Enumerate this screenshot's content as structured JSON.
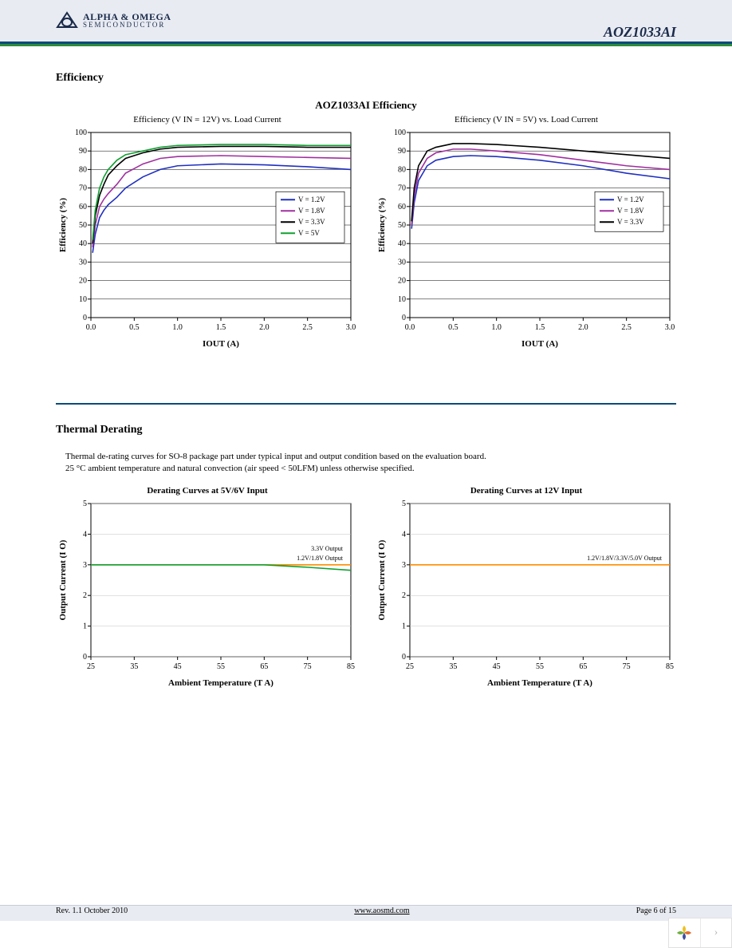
{
  "header": {
    "company_line1": "ALPHA & OMEGA",
    "company_line2": "SEMICONDUCTOR",
    "part_number": "AOZ1033AI",
    "rule_blue": "#0a4b7a",
    "rule_green": "#2e8b3e",
    "band_bg": "#e8ebf2"
  },
  "section_efficiency": {
    "heading": "Efficiency",
    "main_title": "AOZ1033AI Efficiency",
    "left_chart": {
      "type": "line",
      "title": "Efficiency (V      IN  = 12V) vs. Load Current",
      "xlabel": "IOUT  (A)",
      "ylabel": "Efficiency (%)",
      "xlim": [
        0,
        3.0
      ],
      "xtick_step": 0.5,
      "ylim": [
        0,
        100
      ],
      "ytick_step": 10,
      "grid_color": "#000000",
      "grid_width": 0.5,
      "background_color": "#ffffff",
      "line_width": 1.6,
      "legend_pos": "right-mid",
      "series": [
        {
          "label": "V   = 1.2V",
          "color": "#2030c0",
          "x": [
            0.02,
            0.05,
            0.1,
            0.15,
            0.2,
            0.3,
            0.4,
            0.6,
            0.8,
            1.0,
            1.5,
            2.0,
            2.5,
            3.0
          ],
          "y": [
            35,
            45,
            54,
            58,
            61,
            65,
            70,
            76,
            80,
            82,
            83,
            82.5,
            81.5,
            80
          ]
        },
        {
          "label": "V   = 1.8V",
          "color": "#a030a0",
          "x": [
            0.02,
            0.05,
            0.1,
            0.15,
            0.2,
            0.3,
            0.4,
            0.6,
            0.8,
            1.0,
            1.5,
            2.0,
            2.5,
            3.0
          ],
          "y": [
            38,
            50,
            60,
            64,
            67,
            72,
            78,
            83,
            86,
            87,
            87.5,
            87,
            86.5,
            86
          ]
        },
        {
          "label": "V   = 3.3V",
          "color": "#000000",
          "x": [
            0.02,
            0.05,
            0.1,
            0.15,
            0.2,
            0.3,
            0.4,
            0.6,
            0.8,
            1.0,
            1.5,
            2.0,
            2.5,
            3.0
          ],
          "y": [
            40,
            55,
            66,
            72,
            77,
            82,
            86,
            89,
            91,
            92,
            92.5,
            92.5,
            92,
            92
          ]
        },
        {
          "label": "V   = 5V",
          "color": "#10a030",
          "x": [
            0.02,
            0.05,
            0.1,
            0.15,
            0.2,
            0.3,
            0.4,
            0.6,
            0.8,
            1.0,
            1.5,
            2.0,
            2.5,
            3.0
          ],
          "y": [
            42,
            58,
            70,
            76,
            80,
            85,
            88,
            90,
            92,
            93,
            93.5,
            93.5,
            93,
            93
          ]
        }
      ]
    },
    "right_chart": {
      "type": "line",
      "title": "Efficiency (V      IN  = 5V) vs. Load Current",
      "xlabel": "IOUT  (A)",
      "ylabel": "Efficiency (%)",
      "xlim": [
        0,
        3.0
      ],
      "xtick_step": 0.5,
      "ylim": [
        0,
        100
      ],
      "ytick_step": 10,
      "grid_color": "#000000",
      "grid_width": 0.5,
      "background_color": "#ffffff",
      "line_width": 1.6,
      "legend_pos": "right-mid",
      "series": [
        {
          "label": "V   = 1.2V",
          "color": "#2030c0",
          "x": [
            0.02,
            0.05,
            0.1,
            0.2,
            0.3,
            0.5,
            0.7,
            1.0,
            1.5,
            2.0,
            2.5,
            3.0
          ],
          "y": [
            48,
            62,
            74,
            82,
            85,
            87,
            87.5,
            87,
            85,
            82,
            78,
            75
          ]
        },
        {
          "label": "V   = 1.8V",
          "color": "#a030a0",
          "x": [
            0.02,
            0.05,
            0.1,
            0.2,
            0.3,
            0.5,
            0.7,
            1.0,
            1.5,
            2.0,
            2.5,
            3.0
          ],
          "y": [
            50,
            66,
            78,
            86,
            89,
            91,
            91,
            90,
            88,
            85,
            82,
            80
          ]
        },
        {
          "label": "V   = 3.3V",
          "color": "#000000",
          "x": [
            0.02,
            0.05,
            0.1,
            0.2,
            0.3,
            0.5,
            0.7,
            1.0,
            1.5,
            2.0,
            2.5,
            3.0
          ],
          "y": [
            52,
            70,
            82,
            90,
            92,
            94,
            94,
            93.5,
            92,
            90,
            88,
            86
          ]
        }
      ]
    }
  },
  "section_thermal": {
    "heading": "Thermal Derating",
    "note_line1": "Thermal de-rating curves for SO-8 package part under typical input and output condition based on the evaluation board.",
    "note_line2": "25 °C ambient temperature and natural convection (air speed < 50LFM) unless otherwise specified.",
    "left_chart": {
      "type": "line",
      "title": "Derating Curves at 5V/6V Input",
      "xlabel": "Ambient Temperature (T        A)",
      "ylabel": "Output Current (I        O)",
      "xlim": [
        25,
        85
      ],
      "xtick_step": 10,
      "ylim": [
        0,
        5
      ],
      "ytick_step": 1,
      "grid_color": "#c0c0c0",
      "grid_width": 0.5,
      "background_color": "#ffffff",
      "line_width": 1.6,
      "legend_labels": [
        "1.2V/1.8V Output",
        "3.3V Output"
      ],
      "series": [
        {
          "color": "#ff8c00",
          "x": [
            25,
            35,
            45,
            55,
            65,
            75,
            85
          ],
          "y": [
            3,
            3,
            3,
            3,
            3,
            3,
            3
          ]
        },
        {
          "color": "#10a030",
          "x": [
            25,
            35,
            45,
            55,
            65,
            75,
            85
          ],
          "y": [
            3,
            3,
            3,
            3,
            3,
            2.92,
            2.82
          ]
        }
      ]
    },
    "right_chart": {
      "type": "line",
      "title": "Derating Curves at 12V Input",
      "xlabel": "Ambient Temperature (T        A)",
      "ylabel": "Output Current (I        O)",
      "xlim": [
        25,
        85
      ],
      "xtick_step": 10,
      "ylim": [
        0,
        5
      ],
      "ytick_step": 1,
      "grid_color": "#c0c0c0",
      "grid_width": 0.5,
      "background_color": "#ffffff",
      "line_width": 1.6,
      "legend_labels": [
        "1.2V/1.8V/3.3V/5.0V Output"
      ],
      "series": [
        {
          "color": "#ff8c00",
          "x": [
            25,
            35,
            45,
            55,
            65,
            75,
            85
          ],
          "y": [
            3,
            3,
            3,
            3,
            3,
            3,
            3
          ]
        }
      ]
    }
  },
  "footer": {
    "rev": "Rev. 1.1 October 2010",
    "url": "www.aosmd.com",
    "page": "Page 6 of 15"
  }
}
